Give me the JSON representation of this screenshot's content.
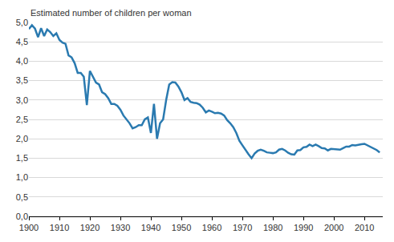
{
  "chart_data": {
    "type": "line",
    "title": "Estimated number of children per woman",
    "color": "#2a7ab0",
    "grid": true,
    "x": [
      1900,
      1901,
      1902,
      1903,
      1904,
      1905,
      1906,
      1907,
      1908,
      1909,
      1910,
      1911,
      1912,
      1913,
      1914,
      1915,
      1916,
      1917,
      1918,
      1919,
      1920,
      1921,
      1922,
      1923,
      1924,
      1925,
      1926,
      1927,
      1928,
      1929,
      1930,
      1931,
      1932,
      1933,
      1934,
      1935,
      1936,
      1937,
      1938,
      1939,
      1940,
      1941,
      1942,
      1943,
      1944,
      1945,
      1946,
      1947,
      1948,
      1949,
      1950,
      1951,
      1952,
      1953,
      1954,
      1955,
      1956,
      1957,
      1958,
      1959,
      1960,
      1961,
      1962,
      1963,
      1964,
      1965,
      1966,
      1967,
      1968,
      1969,
      1970,
      1971,
      1972,
      1973,
      1974,
      1975,
      1976,
      1977,
      1978,
      1979,
      1980,
      1981,
      1982,
      1983,
      1984,
      1985,
      1986,
      1987,
      1988,
      1989,
      1990,
      1991,
      1992,
      1993,
      1994,
      1995,
      1996,
      1997,
      1998,
      1999,
      2000,
      2001,
      2002,
      2003,
      2004,
      2005,
      2006,
      2007,
      2008,
      2009,
      2010,
      2011,
      2012,
      2013,
      2014,
      2015
    ],
    "values": [
      4.83,
      4.93,
      4.84,
      4.62,
      4.85,
      4.65,
      4.82,
      4.75,
      4.65,
      4.72,
      4.55,
      4.48,
      4.45,
      4.15,
      4.1,
      3.95,
      3.7,
      3.7,
      3.6,
      2.87,
      3.75,
      3.6,
      3.45,
      3.4,
      3.2,
      3.15,
      3.05,
      2.9,
      2.9,
      2.85,
      2.75,
      2.6,
      2.5,
      2.4,
      2.27,
      2.3,
      2.35,
      2.35,
      2.5,
      2.55,
      2.15,
      2.9,
      2.0,
      2.4,
      2.5,
      3.0,
      3.4,
      3.46,
      3.45,
      3.35,
      3.2,
      3.0,
      3.05,
      2.95,
      2.93,
      2.92,
      2.88,
      2.8,
      2.68,
      2.73,
      2.7,
      2.66,
      2.67,
      2.65,
      2.6,
      2.48,
      2.4,
      2.3,
      2.15,
      1.95,
      1.83,
      1.7,
      1.6,
      1.5,
      1.62,
      1.69,
      1.72,
      1.69,
      1.65,
      1.64,
      1.63,
      1.65,
      1.72,
      1.74,
      1.7,
      1.64,
      1.6,
      1.59,
      1.7,
      1.71,
      1.78,
      1.79,
      1.85,
      1.81,
      1.85,
      1.81,
      1.76,
      1.75,
      1.7,
      1.74,
      1.73,
      1.73,
      1.72,
      1.76,
      1.8,
      1.8,
      1.84,
      1.83,
      1.85,
      1.86,
      1.87,
      1.83,
      1.8,
      1.75,
      1.71,
      1.65
    ],
    "xlim": [
      1900,
      2016
    ],
    "xticks": [
      1900,
      1910,
      1920,
      1930,
      1940,
      1950,
      1960,
      1970,
      1980,
      1990,
      2000,
      2010
    ],
    "ylim": [
      0,
      5
    ],
    "yticks": [
      {
        "value": 0,
        "label": "0,0"
      },
      {
        "value": 0.5,
        "label": "0,5"
      },
      {
        "value": 1,
        "label": "1,0"
      },
      {
        "value": 1.5,
        "label": "1,5"
      },
      {
        "value": 2,
        "label": "2,0"
      },
      {
        "value": 2.5,
        "label": "2,5"
      },
      {
        "value": 3,
        "label": "3,0"
      },
      {
        "value": 3.5,
        "label": "3,5"
      },
      {
        "value": 4,
        "label": "4,0"
      },
      {
        "value": 4.5,
        "label": "4,5"
      },
      {
        "value": 5,
        "label": "5,0"
      }
    ]
  }
}
